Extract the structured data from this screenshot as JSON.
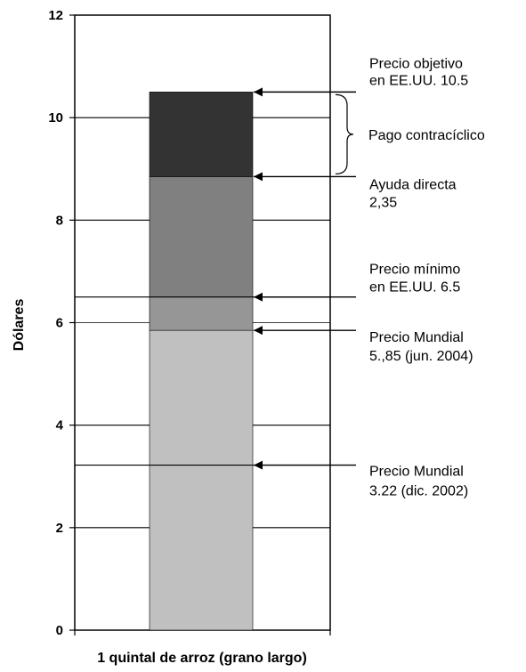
{
  "chart_data": {
    "type": "bar",
    "chart_kind": "stacked-bar",
    "categories": [
      "1 quintal de arroz (grano largo)"
    ],
    "xlabel": "1 quintal de arroz (grano largo)",
    "ylabel": "Dólares",
    "ylim": [
      0,
      12
    ],
    "yticks": [
      "0",
      "2",
      "4",
      "6",
      "8",
      "10",
      "12"
    ],
    "grid": true,
    "gridlines_at": [
      2,
      4,
      6,
      8,
      10
    ],
    "segments": [
      {
        "from": 0,
        "to": 5.85,
        "color": "#c0c0c0"
      },
      {
        "from": 5.85,
        "to": 6.5,
        "color": "#969696"
      },
      {
        "from": 6.5,
        "to": 8.85,
        "color": "#808080"
      },
      {
        "from": 8.85,
        "to": 10.5,
        "color": "#333333"
      }
    ],
    "reference_lines": [
      3.22,
      6.5
    ],
    "annotations": [
      {
        "y": 10.5,
        "arrow": true,
        "lines": [
          "Precio objetivo",
          "en EE.UU. 10.5"
        ]
      },
      {
        "y": 8.85,
        "arrow": true,
        "lines": [
          "Ayuda directa",
          "2,35"
        ]
      },
      {
        "y": 6.5,
        "arrow": true,
        "lines": [
          "Precio mínimo",
          "en EE.UU. 6.5"
        ]
      },
      {
        "y": 5.85,
        "arrow": true,
        "lines": [
          "Precio Mundial",
          "5.,85 (jun. 2004)"
        ]
      },
      {
        "y": 3.22,
        "arrow": true,
        "lines": [
          "Precio Mundial",
          "3.22 (dic. 2002)"
        ]
      }
    ],
    "brace": {
      "from": 8.85,
      "to": 10.5,
      "label": "Pago contracíclico"
    }
  }
}
